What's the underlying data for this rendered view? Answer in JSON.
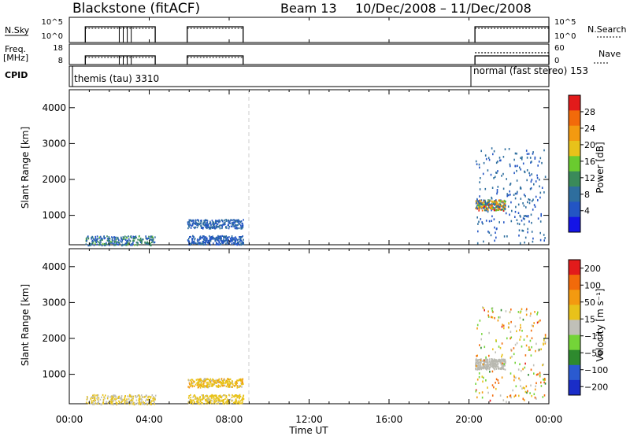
{
  "header": {
    "station": "Blackstone (fitACF)",
    "beam_label": "Beam 13",
    "date_range": "10/Dec/2008 – 11/Dec/2008"
  },
  "top_strip": {
    "nsky_label": "N.Sky",
    "nsky_ticks": [
      "10^5",
      "10^0"
    ],
    "nsearch_label": "N.Search",
    "nsearch_ticks": [
      "10^5",
      "10^0"
    ],
    "freq_label_1": "Freq.",
    "freq_label_2": "[MHz]",
    "freq_ticks": [
      "18",
      "8"
    ],
    "nave_label": "Nave",
    "nave_ticks": [
      "60",
      "0"
    ],
    "cpid_label": "CPID",
    "cpid_1": "themis (tau) 3310",
    "cpid_2": "normal (fast stereo) 153"
  },
  "colors": {
    "power_scale": [
      "#1414e6",
      "#2355c4",
      "#2e6e9e",
      "#3a8a5a",
      "#6acb2f",
      "#e8c21a",
      "#f39a10",
      "#f26a0a",
      "#e21b1b"
    ],
    "velocity_scale": [
      "#1a2dc8",
      "#2a5ad0",
      "#2e8a2e",
      "#74d438",
      "#c0c0b8",
      "#e8c21a",
      "#f39a10",
      "#f26a0a",
      "#e21b1b"
    ],
    "ground_scatter": "#b8b8b0"
  },
  "chart_data": [
    {
      "type": "heatmap",
      "xlabel": "Time UT",
      "ylabel": "Slant Range [km]",
      "colorbar_label": "Power [dB]",
      "colorbar_ticks": [
        "28",
        "24",
        "20",
        "16",
        "12",
        "8",
        "4"
      ],
      "colorbar_range": [
        0,
        30
      ],
      "x_tick_labels": [
        "00:00",
        "04:00",
        "08:00",
        "12:00",
        "16:00",
        "20:00",
        "00:00"
      ],
      "y_tick_labels": [
        "4000",
        "3000",
        "2000",
        "1000"
      ],
      "xlim_hours": [
        0,
        24
      ],
      "ylim_km": [
        180,
        4500
      ],
      "data_intervals_hours": [
        [
          0.8,
          4.3
        ],
        [
          5.9,
          8.7
        ],
        [
          20.3,
          24
        ]
      ],
      "scatter_regions": [
        {
          "t": [
            0.8,
            4.3
          ],
          "range": [
            180,
            450
          ],
          "value": [
            4,
            14
          ]
        },
        {
          "t": [
            5.9,
            8.7
          ],
          "range": [
            650,
            900
          ],
          "value": [
            4,
            10
          ]
        },
        {
          "t": [
            5.9,
            8.7
          ],
          "range": [
            200,
            450
          ],
          "value": [
            4,
            8
          ]
        },
        {
          "t": [
            20.3,
            21.8
          ],
          "range": [
            1150,
            1450
          ],
          "value": [
            4,
            28
          ]
        },
        {
          "t": [
            20.3,
            23.8
          ],
          "range": [
            250,
            2900
          ],
          "value": [
            4,
            10
          ]
        }
      ]
    },
    {
      "type": "heatmap",
      "xlabel": "Time UT",
      "ylabel": "Slant Range [km]",
      "colorbar_label": "Velocity [m s⁻¹]",
      "colorbar_ticks": [
        "200",
        "100",
        "50",
        "15",
        "−15",
        "−50",
        "−100",
        "−200"
      ],
      "colorbar_range": [
        -250,
        250
      ],
      "x_tick_labels": [
        "00:00",
        "04:00",
        "08:00",
        "12:00",
        "16:00",
        "20:00",
        "00:00"
      ],
      "y_tick_labels": [
        "4000",
        "3000",
        "2000",
        "1000"
      ],
      "xlim_hours": [
        0,
        24
      ],
      "ylim_km": [
        180,
        4500
      ],
      "data_intervals_hours": [
        [
          0.8,
          4.3
        ],
        [
          5.9,
          8.7
        ],
        [
          20.3,
          24
        ]
      ],
      "scatter_regions": [
        {
          "t": [
            0.8,
            4.3
          ],
          "range": [
            180,
            450
          ],
          "value": [
            -80,
            20
          ]
        },
        {
          "t": [
            5.9,
            8.7
          ],
          "range": [
            650,
            900
          ],
          "value": [
            -100,
            -30
          ]
        },
        {
          "t": [
            5.9,
            8.7
          ],
          "range": [
            200,
            450
          ],
          "value": [
            -80,
            -20
          ]
        },
        {
          "t": [
            20.3,
            21.8
          ],
          "range": [
            1150,
            1450
          ],
          "value": [
            -10,
            10
          ]
        },
        {
          "t": [
            20.3,
            23.8
          ],
          "range": [
            250,
            2900
          ],
          "value": [
            -200,
            100
          ]
        }
      ]
    }
  ]
}
